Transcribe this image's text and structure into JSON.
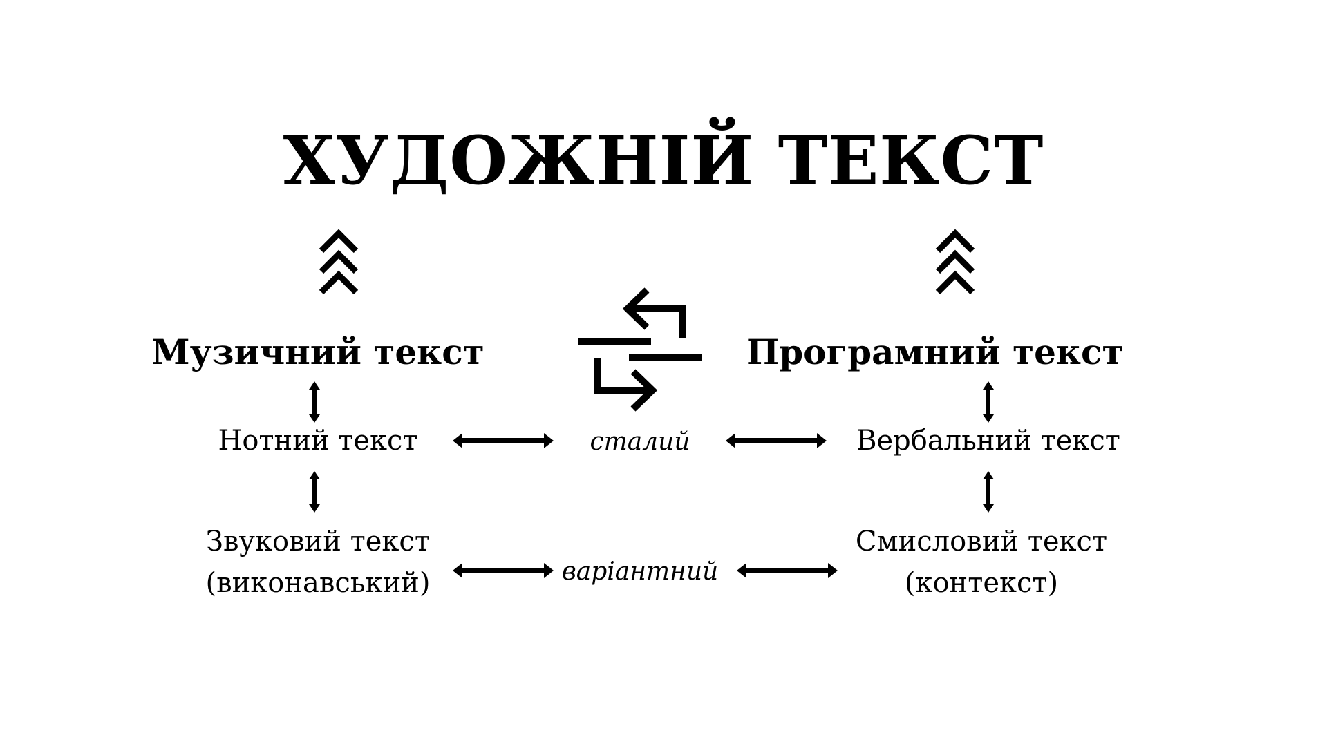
{
  "title": "ХУДОЖНІЙ ТЕКСТ",
  "left": {
    "heading": "Музичний текст",
    "level1": "Нотний текст",
    "level2_line1": "Звуковий текст",
    "level2_line2": "(виконавський)"
  },
  "right": {
    "heading": "Програмний текст",
    "level1": "Вербальний текст",
    "level2_line1": "Смисловий текст",
    "level2_line2": "(контекст)"
  },
  "center": {
    "row1": "сталий",
    "row2": "варіантний"
  },
  "icons": {
    "up_chevrons": "triple-chevron-up-icon",
    "exchange": "exchange-arrows-icon",
    "vertical_double": "vertical-double-arrow-icon",
    "horizontal_double": "horizontal-double-arrow-icon"
  },
  "colors": {
    "ink": "#000000",
    "background": "#ffffff"
  }
}
